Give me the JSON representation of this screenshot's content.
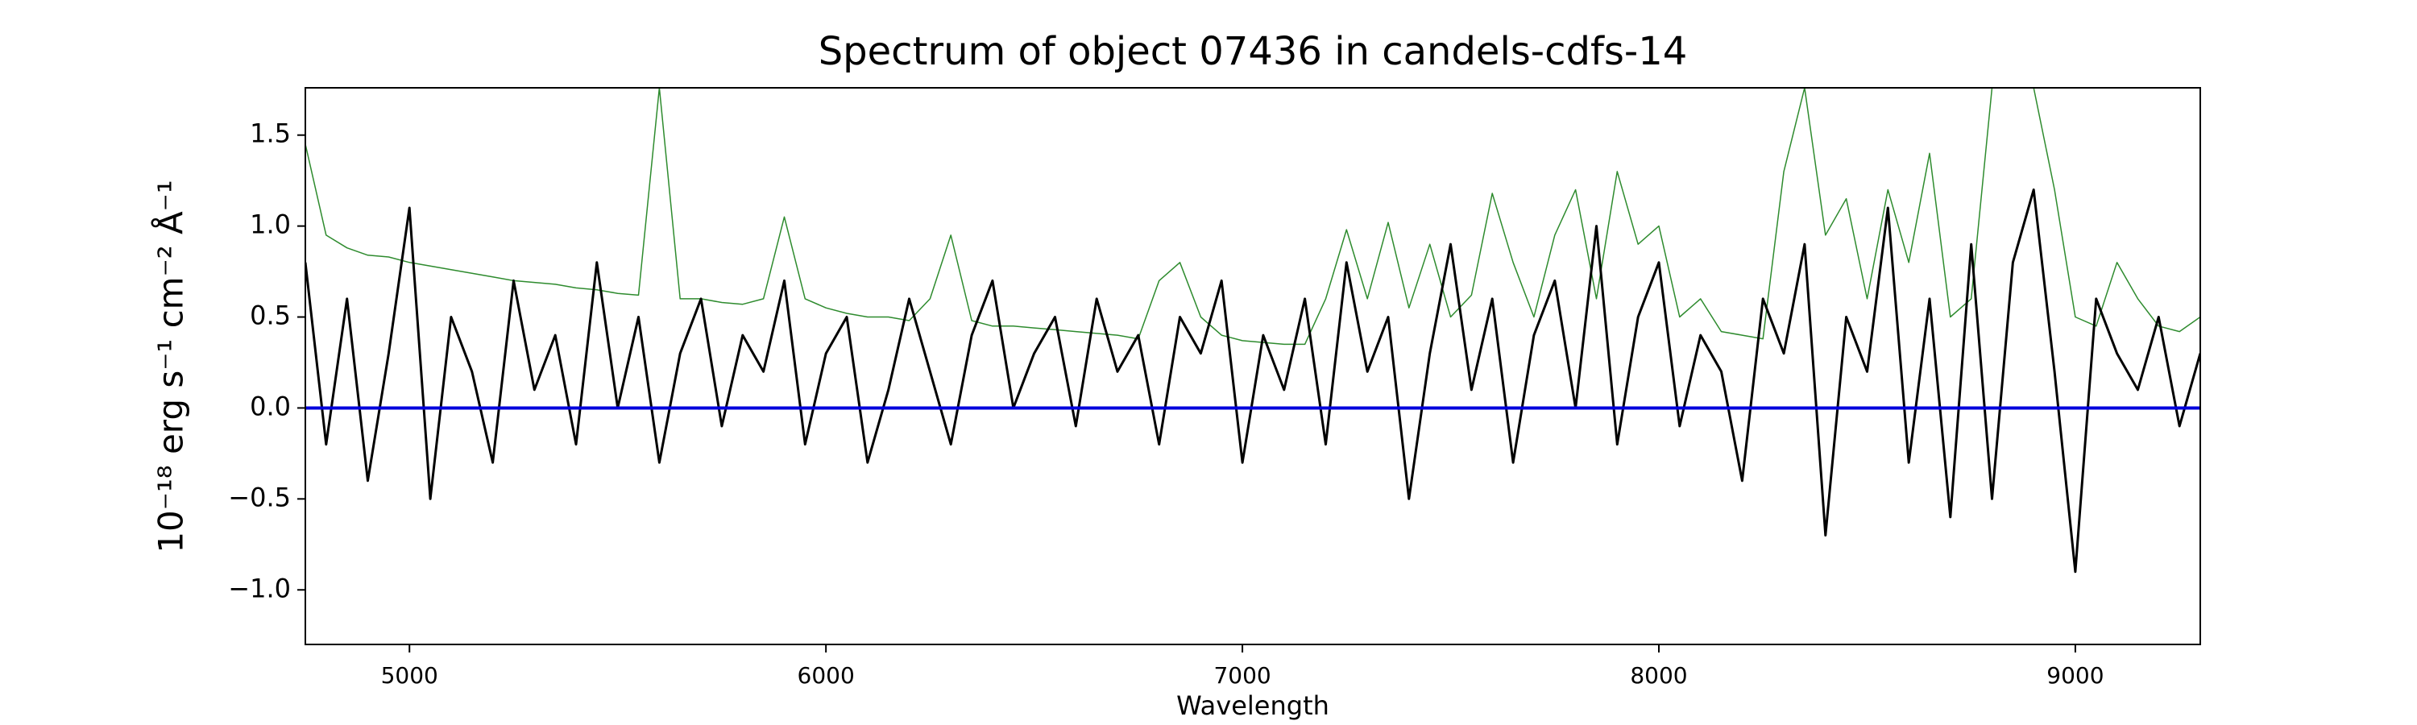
{
  "chart_data": {
    "type": "line",
    "title": "Spectrum of object 07436 in candels-cdfs-14",
    "xlabel": "Wavelength",
    "ylabel": "10⁻¹⁸ erg s⁻¹ cm⁻² Å⁻¹",
    "xlim": [
      4750,
      9300
    ],
    "ylim": [
      -1.3,
      1.76
    ],
    "xticks": [
      5000,
      6000,
      7000,
      8000,
      9000
    ],
    "yticks": [
      {
        "value": -1.0,
        "label": "−1.0"
      },
      {
        "value": -0.5,
        "label": "−0.5"
      },
      {
        "value": 0.0,
        "label": "0.0"
      },
      0.5,
      {
        "value": 1.0,
        "label": "1.0"
      },
      1.5
    ],
    "grid": false,
    "x": [
      4750,
      4800,
      4850,
      4900,
      4950,
      5000,
      5050,
      5100,
      5150,
      5200,
      5250,
      5300,
      5350,
      5400,
      5450,
      5500,
      5550,
      5600,
      5650,
      5700,
      5750,
      5800,
      5850,
      5900,
      5950,
      6000,
      6050,
      6100,
      6150,
      6200,
      6250,
      6300,
      6350,
      6400,
      6450,
      6500,
      6550,
      6600,
      6650,
      6700,
      6750,
      6800,
      6850,
      6900,
      6950,
      7000,
      7050,
      7100,
      7150,
      7200,
      7250,
      7300,
      7350,
      7400,
      7450,
      7500,
      7550,
      7600,
      7650,
      7700,
      7750,
      7800,
      7850,
      7900,
      7950,
      8000,
      8050,
      8100,
      8150,
      8200,
      8250,
      8300,
      8350,
      8400,
      8450,
      8500,
      8550,
      8600,
      8650,
      8700,
      8750,
      8800,
      8850,
      8900,
      8950,
      9000,
      9050,
      9100,
      9150,
      9200,
      9250,
      9300
    ],
    "series": [
      {
        "color": "#2e8b2e",
        "width": 1.5,
        "values": [
          1.45,
          0.95,
          0.88,
          0.84,
          0.83,
          0.8,
          0.78,
          0.76,
          0.74,
          0.72,
          0.7,
          0.69,
          0.68,
          0.66,
          0.65,
          0.63,
          0.62,
          1.76,
          0.6,
          0.6,
          0.58,
          0.57,
          0.6,
          1.05,
          0.6,
          0.55,
          0.52,
          0.5,
          0.5,
          0.48,
          0.6,
          0.95,
          0.48,
          0.45,
          0.45,
          0.44,
          0.43,
          0.42,
          0.41,
          0.4,
          0.38,
          0.7,
          0.8,
          0.5,
          0.4,
          0.37,
          0.36,
          0.35,
          0.35,
          0.6,
          0.98,
          0.6,
          1.02,
          0.55,
          0.9,
          0.5,
          0.62,
          1.18,
          0.8,
          0.5,
          0.95,
          1.2,
          0.6,
          1.3,
          0.9,
          1.0,
          0.5,
          0.6,
          0.42,
          0.4,
          0.38,
          1.3,
          1.76,
          0.95,
          1.15,
          0.6,
          1.2,
          0.8,
          1.4,
          0.5,
          0.6,
          1.76,
          1.76,
          1.76,
          1.2,
          0.5,
          0.45,
          0.8,
          0.6,
          0.45,
          0.42,
          0.5
        ]
      },
      {
        "color": "#000000",
        "width": 3,
        "values": [
          0.8,
          -0.2,
          0.6,
          -0.4,
          0.3,
          1.1,
          -0.5,
          0.5,
          0.2,
          -0.3,
          0.7,
          0.1,
          0.4,
          -0.2,
          0.8,
          0.0,
          0.5,
          -0.3,
          0.3,
          0.6,
          -0.1,
          0.4,
          0.2,
          0.7,
          -0.2,
          0.3,
          0.5,
          -0.3,
          0.1,
          0.6,
          0.2,
          -0.2,
          0.4,
          0.7,
          0.0,
          0.3,
          0.5,
          -0.1,
          0.6,
          0.2,
          0.4,
          -0.2,
          0.5,
          0.3,
          0.7,
          -0.3,
          0.4,
          0.1,
          0.6,
          -0.2,
          0.8,
          0.2,
          0.5,
          -0.5,
          0.3,
          0.9,
          0.1,
          0.6,
          -0.3,
          0.4,
          0.7,
          0.0,
          1.0,
          -0.2,
          0.5,
          0.8,
          -0.1,
          0.4,
          0.2,
          -0.4,
          0.6,
          0.3,
          0.9,
          -0.7,
          0.5,
          0.2,
          1.1,
          -0.3,
          0.6,
          -0.6,
          0.9,
          -0.5,
          0.8,
          1.2,
          0.2,
          -0.9,
          0.6,
          0.3,
          0.1,
          0.5,
          -0.1,
          0.3
        ]
      }
    ],
    "hlines": [
      {
        "y": 0,
        "color": "#0000dd",
        "width": 4
      }
    ]
  }
}
